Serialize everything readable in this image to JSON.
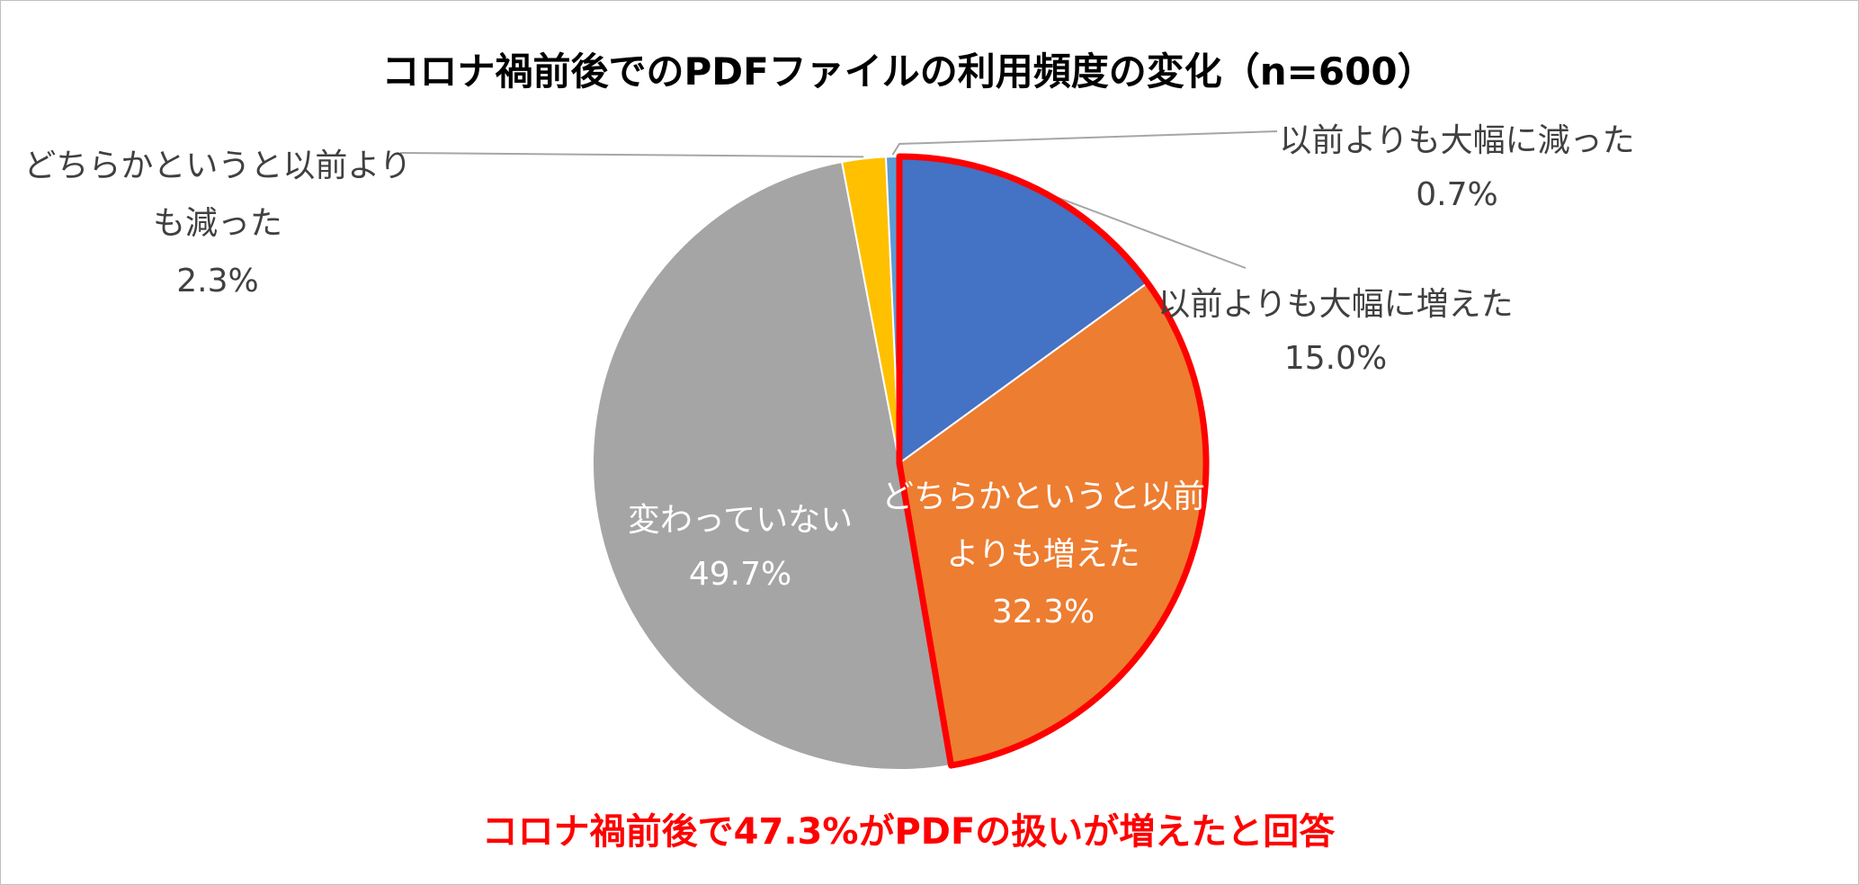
{
  "chart_data": {
    "type": "pie",
    "title": "コロナ禍前後でのPDFファイルの利用頻度の変化（n=600）",
    "slices": [
      {
        "label": "以前よりも大幅に増えた",
        "value": 15.0,
        "value_label": "15.0%",
        "color": "#4472c4"
      },
      {
        "label": "どちらかというと以前よりも増えた",
        "value": 32.3,
        "value_label": "32.3%",
        "color": "#ed7d31"
      },
      {
        "label": "変わっていない",
        "value": 49.7,
        "value_label": "49.7%",
        "color": "#a5a5a5"
      },
      {
        "label": "どちらかというと以前よりも減った",
        "value": 2.3,
        "value_label": "2.3%",
        "color": "#ffc000"
      },
      {
        "label": "以前よりも大幅に減った",
        "value": 0.7,
        "value_label": "0.7%",
        "color": "#5b9bd5"
      }
    ],
    "highlight": {
      "slices": [
        0,
        1
      ],
      "outline_color": "#ff0000"
    },
    "label_lines": {
      "s0": [
        "以前よりも大幅に増えた",
        "15.0%"
      ],
      "s1": [
        "どちらかというと以前",
        "よりも増えた",
        "32.3%"
      ],
      "s2": [
        "変わっていない",
        "49.7%"
      ],
      "s3": [
        "どちらかというと以前より",
        "も減った",
        "2.3%"
      ],
      "s4": [
        "以前よりも大幅に減った",
        "0.7%"
      ]
    },
    "legend": "none"
  },
  "footnote": "コロナ禍前後で47.3%がPDFの扱いが増えたと回答"
}
